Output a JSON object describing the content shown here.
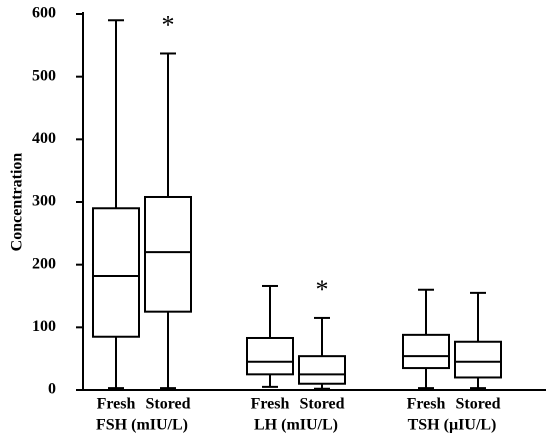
{
  "chart_data": {
    "type": "box",
    "y_label": "Concentration",
    "ylim": [
      0,
      600
    ],
    "yticks": [
      0,
      100,
      200,
      300,
      400,
      500,
      600
    ],
    "groups": [
      {
        "name": "FSH (mIU/L)",
        "boxes": [
          {
            "label": "Fresh",
            "whislo": 3,
            "q1": 85,
            "med": 182,
            "q3": 290,
            "whishi": 590
          },
          {
            "label": "Stored",
            "whislo": 3,
            "q1": 125,
            "med": 220,
            "q3": 308,
            "whishi": 537,
            "annotation": "*"
          }
        ]
      },
      {
        "name": "LH (mIU/L)",
        "boxes": [
          {
            "label": "Fresh",
            "whislo": 5,
            "q1": 25,
            "med": 45,
            "q3": 83,
            "whishi": 166
          },
          {
            "label": "Stored",
            "whislo": 2,
            "q1": 10,
            "med": 25,
            "q3": 54,
            "whishi": 115,
            "annotation": "*"
          }
        ]
      },
      {
        "name": "TSH (µIU/L)",
        "boxes": [
          {
            "label": "Fresh",
            "whislo": 3,
            "q1": 35,
            "med": 54,
            "q3": 88,
            "whishi": 160
          },
          {
            "label": "Stored",
            "whislo": 3,
            "q1": 20,
            "med": 45,
            "q3": 77,
            "whishi": 155
          }
        ]
      }
    ]
  }
}
